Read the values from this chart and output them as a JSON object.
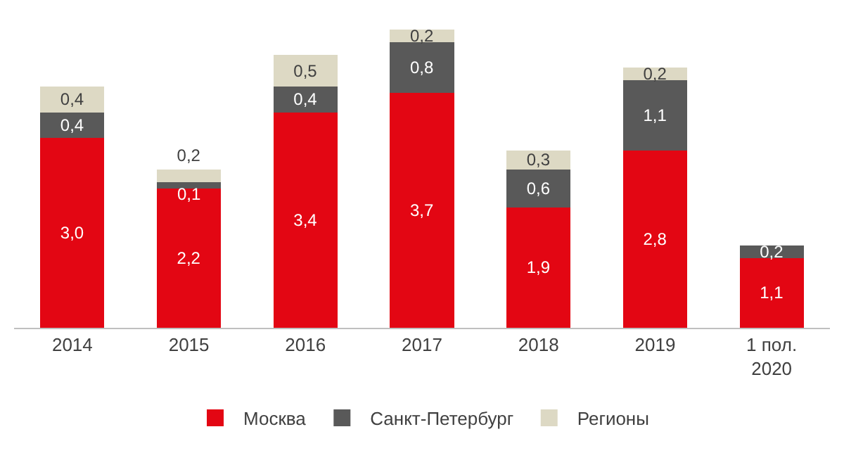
{
  "chart_data": {
    "type": "bar",
    "stacked": true,
    "categories": [
      "2014",
      "2015",
      "2016",
      "2017",
      "2018",
      "2019",
      "1 пол.\n2020"
    ],
    "series": [
      {
        "name": "Москва",
        "color": "#e30613",
        "values": [
          3.0,
          2.2,
          3.4,
          3.7,
          1.9,
          2.8,
          1.1
        ],
        "value_labels": [
          "3,0",
          "2,2",
          "3,4",
          "3,7",
          "1,9",
          "2,8",
          "1,1"
        ]
      },
      {
        "name": "Санкт-Петербург",
        "color": "#595959",
        "values": [
          0.4,
          0.1,
          0.4,
          0.8,
          0.6,
          1.1,
          0.2
        ],
        "value_labels": [
          "0,4",
          "0,1",
          "0,4",
          "0,8",
          "0,6",
          "1,1",
          "0,2"
        ]
      },
      {
        "name": "Регионы",
        "color": "#ddd9c4",
        "values": [
          0.4,
          0.2,
          0.5,
          0.2,
          0.3,
          0.2,
          null
        ],
        "value_labels": [
          "0,4",
          "0,2",
          "0,5",
          "0,2",
          "0,3",
          "0,2",
          null
        ]
      }
    ],
    "legend": "bottom",
    "tick_labels": "x"
  }
}
